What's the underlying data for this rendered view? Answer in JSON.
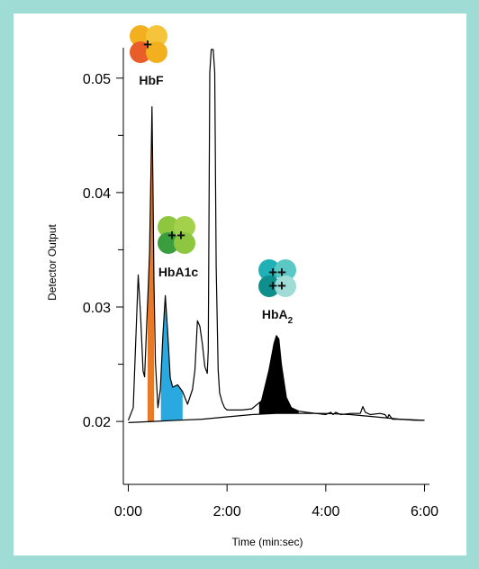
{
  "chart_data": {
    "type": "line",
    "title": "",
    "xlabel": "Time (min:sec)",
    "ylabel": "Detector Output",
    "x_unit": "minutes",
    "xlim": [
      -0.1,
      6.1
    ],
    "ylim": [
      0.0145,
      0.0525
    ],
    "x_ticks": [
      {
        "value": 0,
        "label": "0:00"
      },
      {
        "value": 2,
        "label": "2:00"
      },
      {
        "value": 4,
        "label": "4:00"
      },
      {
        "value": 6,
        "label": "6:00"
      }
    ],
    "y_ticks": [
      {
        "value": 0.02,
        "label": "0.02"
      },
      {
        "value": 0.03,
        "label": "0.03"
      },
      {
        "value": 0.04,
        "label": "0.04"
      },
      {
        "value": 0.05,
        "label": "0.05"
      }
    ],
    "y_minor_ticks": [
      0.025,
      0.035,
      0.045
    ],
    "grid": false,
    "series": [
      {
        "x": [
          0.0,
          0.1,
          0.2,
          0.25,
          0.3,
          0.33,
          0.38,
          0.4,
          0.43,
          0.46,
          0.48,
          0.5,
          0.52,
          0.55,
          0.6,
          0.65,
          0.7,
          0.75,
          0.8,
          0.85,
          0.9,
          1.0,
          1.1,
          1.2,
          1.3,
          1.35,
          1.4,
          1.45,
          1.5,
          1.55,
          1.6,
          1.62,
          1.65,
          1.68,
          1.72,
          1.75,
          1.78,
          1.82,
          1.85,
          1.9,
          1.95,
          2.0,
          2.1,
          2.3,
          2.5,
          2.7,
          2.85,
          2.95,
          3.0,
          3.05,
          3.1,
          3.2,
          3.3,
          3.45,
          3.6,
          3.8,
          4.0,
          4.1,
          4.15,
          4.2,
          4.3,
          4.5,
          4.7,
          4.75,
          4.8,
          4.9,
          5.1,
          5.2,
          5.25,
          5.28,
          5.35,
          5.5,
          5.8,
          6.0
        ],
        "y": [
          0.0201,
          0.0212,
          0.0328,
          0.0292,
          0.0244,
          0.0239,
          0.0292,
          0.0312,
          0.0348,
          0.0421,
          0.0475,
          0.0405,
          0.0322,
          0.0252,
          0.0212,
          0.0228,
          0.0275,
          0.031,
          0.0276,
          0.0238,
          0.023,
          0.0232,
          0.0226,
          0.0215,
          0.0228,
          0.0245,
          0.0288,
          0.0283,
          0.0268,
          0.0248,
          0.0242,
          0.0262,
          0.0505,
          0.0525,
          0.0525,
          0.0505,
          0.0335,
          0.0245,
          0.0225,
          0.0217,
          0.0212,
          0.021,
          0.021,
          0.021,
          0.0211,
          0.0218,
          0.0245,
          0.0268,
          0.0275,
          0.0272,
          0.025,
          0.0221,
          0.0212,
          0.0209,
          0.0208,
          0.0207,
          0.0206,
          0.0208,
          0.0206,
          0.0208,
          0.0206,
          0.0207,
          0.0207,
          0.0213,
          0.0208,
          0.0206,
          0.0207,
          0.0206,
          0.0203,
          0.0206,
          0.0202,
          0.0202,
          0.0201,
          0.0201
        ]
      },
      {
        "x": [
          0.0,
          0.5,
          1.0,
          1.5,
          2.0,
          2.5,
          3.0,
          3.5,
          4.0,
          4.5,
          5.0,
          5.5,
          6.0
        ],
        "y": [
          0.0199,
          0.02,
          0.0201,
          0.0202,
          0.0204,
          0.0206,
          0.0207,
          0.0207,
          0.0207,
          0.0206,
          0.0204,
          0.0202,
          0.0201
        ]
      }
    ],
    "peaks": [
      {
        "name": "HbF",
        "label_main": "HbF",
        "label_sub": "",
        "color": "#e8792a",
        "x_start": 0.39,
        "x_end": 0.52,
        "icon_colors": [
          "#f2b01e",
          "#f6c43a",
          "#e85d28",
          "#f2b01e"
        ],
        "icon_signs": "+"
      },
      {
        "name": "HbA1c",
        "label_main": "HbA1c",
        "label_sub": "",
        "color": "#2aa8e0",
        "x_start": 0.66,
        "x_end": 1.1,
        "icon_colors": [
          "#8ec63f",
          "#a3d14b",
          "#3a9e3e",
          "#8ec63f"
        ],
        "icon_signs": "++"
      },
      {
        "name": "HbA2",
        "label_main": "HbA",
        "label_sub": "2",
        "color": "#000000",
        "x_start": 2.65,
        "x_end": 3.45,
        "icon_colors": [
          "#1fb1b5",
          "#5cc8c6",
          "#0e8f8c",
          "#9fdcd6"
        ],
        "icon_signs": "++\n++"
      }
    ],
    "colors": {
      "background": "#9fdcd6",
      "panel": "#ffffff",
      "line": "#000000"
    }
  }
}
